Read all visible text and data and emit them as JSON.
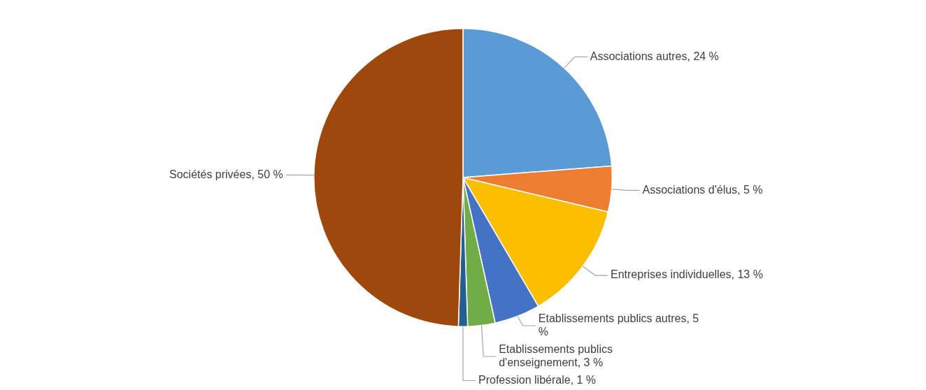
{
  "chart_data": {
    "type": "pie",
    "categories": [
      "Associations autres",
      "Associations d'élus",
      "Entreprises individuelles",
      "Etablissements publics autres",
      "Etablissements publics d'enseignement",
      "Profession libérale",
      "Sociétés privées"
    ],
    "values": [
      24,
      5,
      13,
      5,
      3,
      1,
      50
    ],
    "value_labels": [
      "24 %",
      "5 %",
      "13 %",
      "5 %",
      "3 %",
      "1 %",
      "50 %"
    ],
    "colors": [
      "#5b9bd5",
      "#ed7d31",
      "#fbbf00",
      "#4472c4",
      "#70ad47",
      "#255e91",
      "#9e480e"
    ]
  }
}
